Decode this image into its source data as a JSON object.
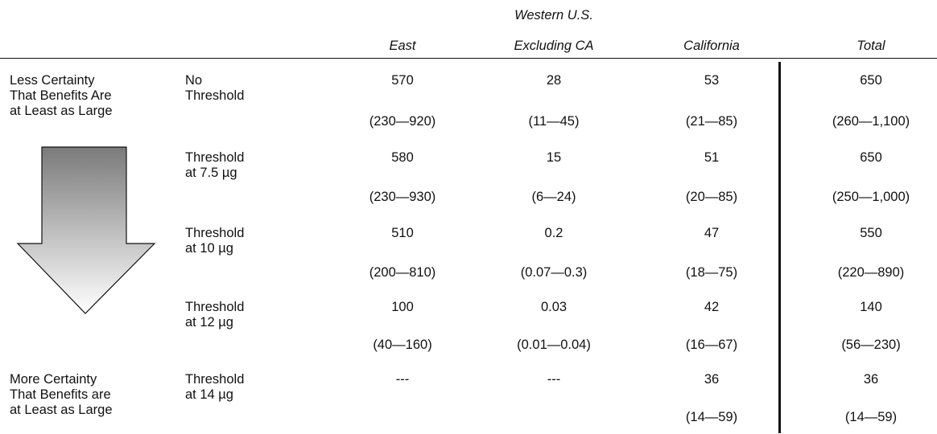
{
  "columns": {
    "east": "East",
    "west_line1": "Western U.S.",
    "west_line2": "Excluding CA",
    "california": "California",
    "total": "Total"
  },
  "certainty": {
    "less": [
      "Less Certainty",
      "That Benefits Are",
      "at Least as Large"
    ],
    "more": [
      "More Certainty",
      "That Benefits are",
      "at Least as Large"
    ]
  },
  "rows": [
    {
      "label": [
        "No",
        "Threshold"
      ],
      "east": "570",
      "east_ci": "(230—920)",
      "west": "28",
      "west_ci": "(11—45)",
      "ca": "53",
      "ca_ci": "(21—85)",
      "total": "650",
      "total_ci": "(260—1,100)"
    },
    {
      "label": [
        "Threshold",
        "at 7.5 µg"
      ],
      "east": "580",
      "east_ci": "(230—930)",
      "west": "15",
      "west_ci": "(6—24)",
      "ca": "51",
      "ca_ci": "(20—85)",
      "total": "650",
      "total_ci": "(250—1,000)"
    },
    {
      "label": [
        "Threshold",
        "at 10 µg"
      ],
      "east": "510",
      "east_ci": "(200—810)",
      "west": "0.2",
      "west_ci": "(0.07—0.3)",
      "ca": "47",
      "ca_ci": "(18—75)",
      "total": "550",
      "total_ci": "(220—890)"
    },
    {
      "label": [
        "Threshold",
        "at 12 µg"
      ],
      "east": "100",
      "east_ci": "(40—160)",
      "west": "0.03",
      "west_ci": "(0.01—0.04)",
      "ca": "42",
      "ca_ci": "(16—67)",
      "total": "140",
      "total_ci": "(56—230)"
    },
    {
      "label": [
        "Threshold",
        "at 14 µg"
      ],
      "east": "---",
      "east_ci": "",
      "west": "---",
      "west_ci": "",
      "ca": "36",
      "ca_ci": "(14—59)",
      "total": "36",
      "total_ci": "(14—59)"
    }
  ],
  "colors": {
    "arrow_top": "#7a7a7a",
    "arrow_bottom": "#ffffff",
    "rule": "#111111"
  }
}
